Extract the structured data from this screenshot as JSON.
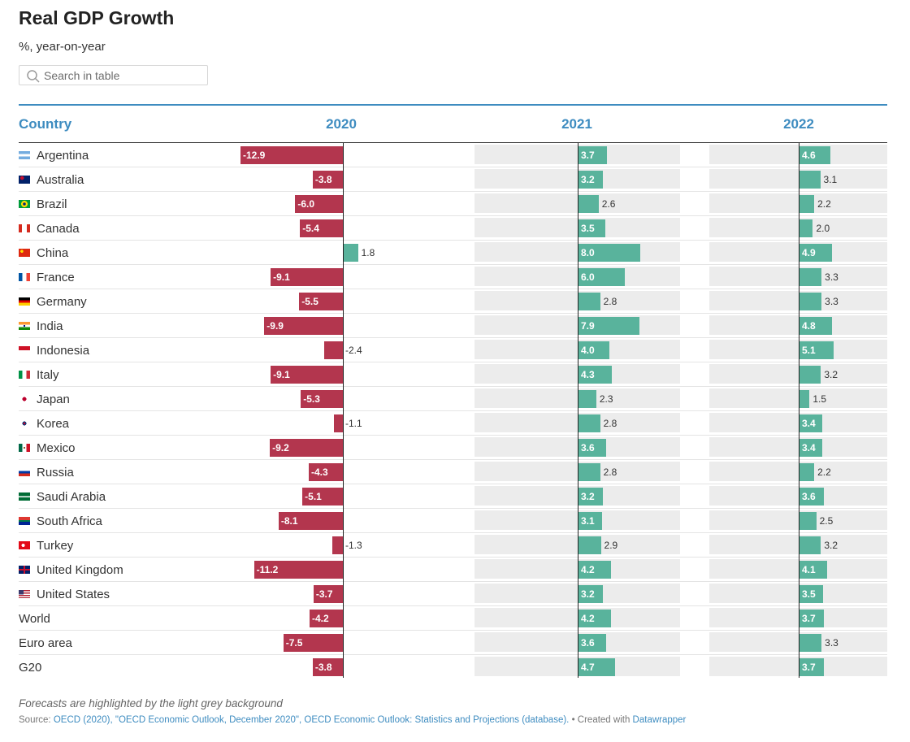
{
  "title": "Real GDP Growth",
  "subtitle": "%, year-on-year",
  "search": {
    "placeholder": "Search in table"
  },
  "columns": {
    "country": "Country",
    "c2020": "2020",
    "c2021": "2021",
    "c2022": "2022"
  },
  "note": "Forecasts are highlighted by the light grey background",
  "source": {
    "prefix": "Source: ",
    "link": "OECD (2020), \"OECD Economic Outlook, December 2020\", OECD Economic Outlook: Statistics and Projections (database).",
    "created": " • Created with ",
    "tool": "Datawrapper"
  },
  "colors": {
    "negative": "#b3364e",
    "positive": "#59b39c",
    "forecast_bg": "#ececec",
    "header": "#3e8cc0"
  },
  "chart_data": {
    "type": "table",
    "columns": [
      "2020",
      "2021",
      "2022"
    ],
    "forecast_columns": [
      "2021",
      "2022"
    ],
    "rows": [
      {
        "label": "Argentina",
        "flag": "flag-argentina",
        "values": [
          -12.9,
          3.7,
          4.6
        ]
      },
      {
        "label": "Australia",
        "flag": "flag-australia",
        "values": [
          -3.8,
          3.2,
          3.1
        ]
      },
      {
        "label": "Brazil",
        "flag": "flag-brazil",
        "values": [
          -6.0,
          2.6,
          2.2
        ]
      },
      {
        "label": "Canada",
        "flag": "flag-canada",
        "values": [
          -5.4,
          3.5,
          2.0
        ]
      },
      {
        "label": "China",
        "flag": "flag-china",
        "values": [
          1.8,
          8.0,
          4.9
        ]
      },
      {
        "label": "France",
        "flag": "flag-france",
        "values": [
          -9.1,
          6.0,
          3.3
        ]
      },
      {
        "label": "Germany",
        "flag": "flag-germany",
        "values": [
          -5.5,
          2.8,
          3.3
        ]
      },
      {
        "label": "India",
        "flag": "flag-india",
        "values": [
          -9.9,
          7.9,
          4.8
        ]
      },
      {
        "label": "Indonesia",
        "flag": "flag-indonesia",
        "values": [
          -2.4,
          4.0,
          5.1
        ]
      },
      {
        "label": "Italy",
        "flag": "flag-italy",
        "values": [
          -9.1,
          4.3,
          3.2
        ]
      },
      {
        "label": "Japan",
        "flag": "flag-japan",
        "values": [
          -5.3,
          2.3,
          1.5
        ]
      },
      {
        "label": "Korea",
        "flag": "flag-korea",
        "values": [
          -1.1,
          2.8,
          3.4
        ]
      },
      {
        "label": "Mexico",
        "flag": "flag-mexico",
        "values": [
          -9.2,
          3.6,
          3.4
        ]
      },
      {
        "label": "Russia",
        "flag": "flag-russia",
        "values": [
          -4.3,
          2.8,
          2.2
        ]
      },
      {
        "label": "Saudi Arabia",
        "flag": "flag-saudi-arabia",
        "values": [
          -5.1,
          3.2,
          3.6
        ]
      },
      {
        "label": "South Africa",
        "flag": "flag-south-africa",
        "values": [
          -8.1,
          3.1,
          2.5
        ]
      },
      {
        "label": "Turkey",
        "flag": "flag-turkey",
        "values": [
          -1.3,
          2.9,
          3.2
        ]
      },
      {
        "label": "United Kingdom",
        "flag": "flag-united-kingdom",
        "values": [
          -11.2,
          4.2,
          4.1
        ]
      },
      {
        "label": "United States",
        "flag": "flag-united-states",
        "values": [
          -3.7,
          3.2,
          3.5
        ]
      },
      {
        "label": "World",
        "flag": "",
        "values": [
          -4.2,
          4.2,
          3.7
        ]
      },
      {
        "label": "Euro area",
        "flag": "",
        "values": [
          -7.5,
          3.6,
          3.3
        ]
      },
      {
        "label": "G20",
        "flag": "",
        "values": [
          -3.8,
          4.7,
          3.7
        ]
      }
    ]
  }
}
